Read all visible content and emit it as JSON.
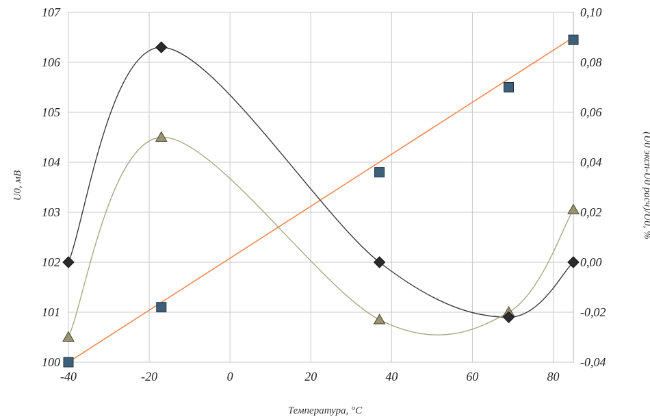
{
  "chart_data": {
    "type": "line",
    "xlabel": "Температура, °С",
    "ylabel_left": "U0, мВ",
    "ylabel_right": "(U0 эксп-U0 расч)/U0, %",
    "xlim": [
      -40,
      85
    ],
    "ylim_left": [
      100,
      107
    ],
    "ylim_right": [
      -0.04,
      0.1
    ],
    "x_ticks": [
      {
        "value": -40,
        "label": "-40"
      },
      {
        "value": -20,
        "label": "-20"
      },
      {
        "value": 0,
        "label": "0"
      },
      {
        "value": 20,
        "label": "20"
      },
      {
        "value": 40,
        "label": "40"
      },
      {
        "value": 60,
        "label": "60"
      },
      {
        "value": 80,
        "label": "80"
      }
    ],
    "y_ticks_left": [
      {
        "value": 100,
        "label": "100"
      },
      {
        "value": 101,
        "label": "101"
      },
      {
        "value": 102,
        "label": "102"
      },
      {
        "value": 103,
        "label": "103"
      },
      {
        "value": 104,
        "label": "104"
      },
      {
        "value": 105,
        "label": "105"
      },
      {
        "value": 106,
        "label": "106"
      },
      {
        "value": 107,
        "label": "107"
      }
    ],
    "y_ticks_right": [
      {
        "value": -0.04,
        "label": "-0,04"
      },
      {
        "value": -0.02,
        "label": "-0,02"
      },
      {
        "value": 0.0,
        "label": "0,00"
      },
      {
        "value": 0.02,
        "label": "0,02"
      },
      {
        "value": 0.04,
        "label": "0,04"
      },
      {
        "value": 0.06,
        "label": "0,06"
      },
      {
        "value": 0.08,
        "label": "0,08"
      },
      {
        "value": 0.1,
        "label": "0,10"
      }
    ],
    "grid": true,
    "series": [
      {
        "id": "squares",
        "axis": "left",
        "marker": "square",
        "marker_color": "#3d5f78",
        "line_color": "#f08850",
        "points": [
          {
            "x": -40,
            "y": 100.0
          },
          {
            "x": -17,
            "y": 101.1
          },
          {
            "x": 37,
            "y": 103.8
          },
          {
            "x": 69,
            "y": 105.5
          },
          {
            "x": 85,
            "y": 106.45
          }
        ],
        "fit_line": [
          {
            "x": -40,
            "y": 100.0
          },
          {
            "x": 85,
            "y": 106.5
          }
        ]
      },
      {
        "id": "diamonds",
        "axis": "right",
        "marker": "diamond",
        "marker_color": "#2b2b2b",
        "line_color": "#3a3a3a",
        "points": [
          {
            "x": -40,
            "y": 0.0
          },
          {
            "x": -17,
            "y": 0.086
          },
          {
            "x": 37,
            "y": 0.0
          },
          {
            "x": 69,
            "y": -0.022
          },
          {
            "x": 85,
            "y": 0.0
          }
        ]
      },
      {
        "id": "triangles",
        "axis": "right",
        "marker": "triangle",
        "marker_color": "#9a9270",
        "line_color": "#a4aa80",
        "points": [
          {
            "x": -40,
            "y": -0.03
          },
          {
            "x": -17,
            "y": 0.05
          },
          {
            "x": 37,
            "y": -0.023
          },
          {
            "x": 69,
            "y": -0.02
          },
          {
            "x": 85,
            "y": 0.021
          }
        ]
      }
    ]
  }
}
